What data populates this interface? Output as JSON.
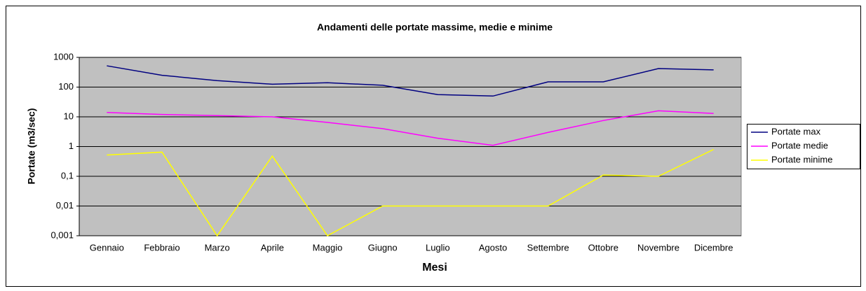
{
  "chart_data": {
    "type": "line",
    "title": "Andamenti delle portate massime, medie e minime",
    "xlabel": "Mesi",
    "ylabel": "Portate (m3/sec)",
    "categories": [
      "Gennaio",
      "Febbraio",
      "Marzo",
      "Aprile",
      "Maggio",
      "Giugno",
      "Luglio",
      "Agosto",
      "Settembre",
      "Ottobre",
      "Novembre",
      "Dicembre"
    ],
    "series": [
      {
        "name": "Portate max",
        "color": "#000080",
        "values": [
          520,
          250,
          165,
          125,
          140,
          115,
          56,
          50,
          150,
          150,
          420,
          380
        ]
      },
      {
        "name": "Portate medie",
        "color": "#ff00ff",
        "values": [
          14,
          12,
          11,
          10,
          6.5,
          4,
          1.9,
          1.1,
          3,
          7.5,
          16,
          13
        ]
      },
      {
        "name": "Portate minime",
        "color": "#ffff00",
        "values": [
          0.52,
          0.65,
          0.001,
          0.48,
          0.001,
          0.01,
          0.01,
          0.01,
          0.01,
          0.11,
          0.1,
          0.8
        ]
      }
    ],
    "ylim": [
      0.001,
      1000
    ],
    "yticks": [
      1000,
      100,
      10,
      1,
      {
        "value": 0.1,
        "label": "0,1"
      },
      {
        "value": 0.01,
        "label": "0,01"
      },
      {
        "value": 0.001,
        "label": "0,001"
      }
    ],
    "yscale": "log",
    "grid": true,
    "legend": "right"
  }
}
